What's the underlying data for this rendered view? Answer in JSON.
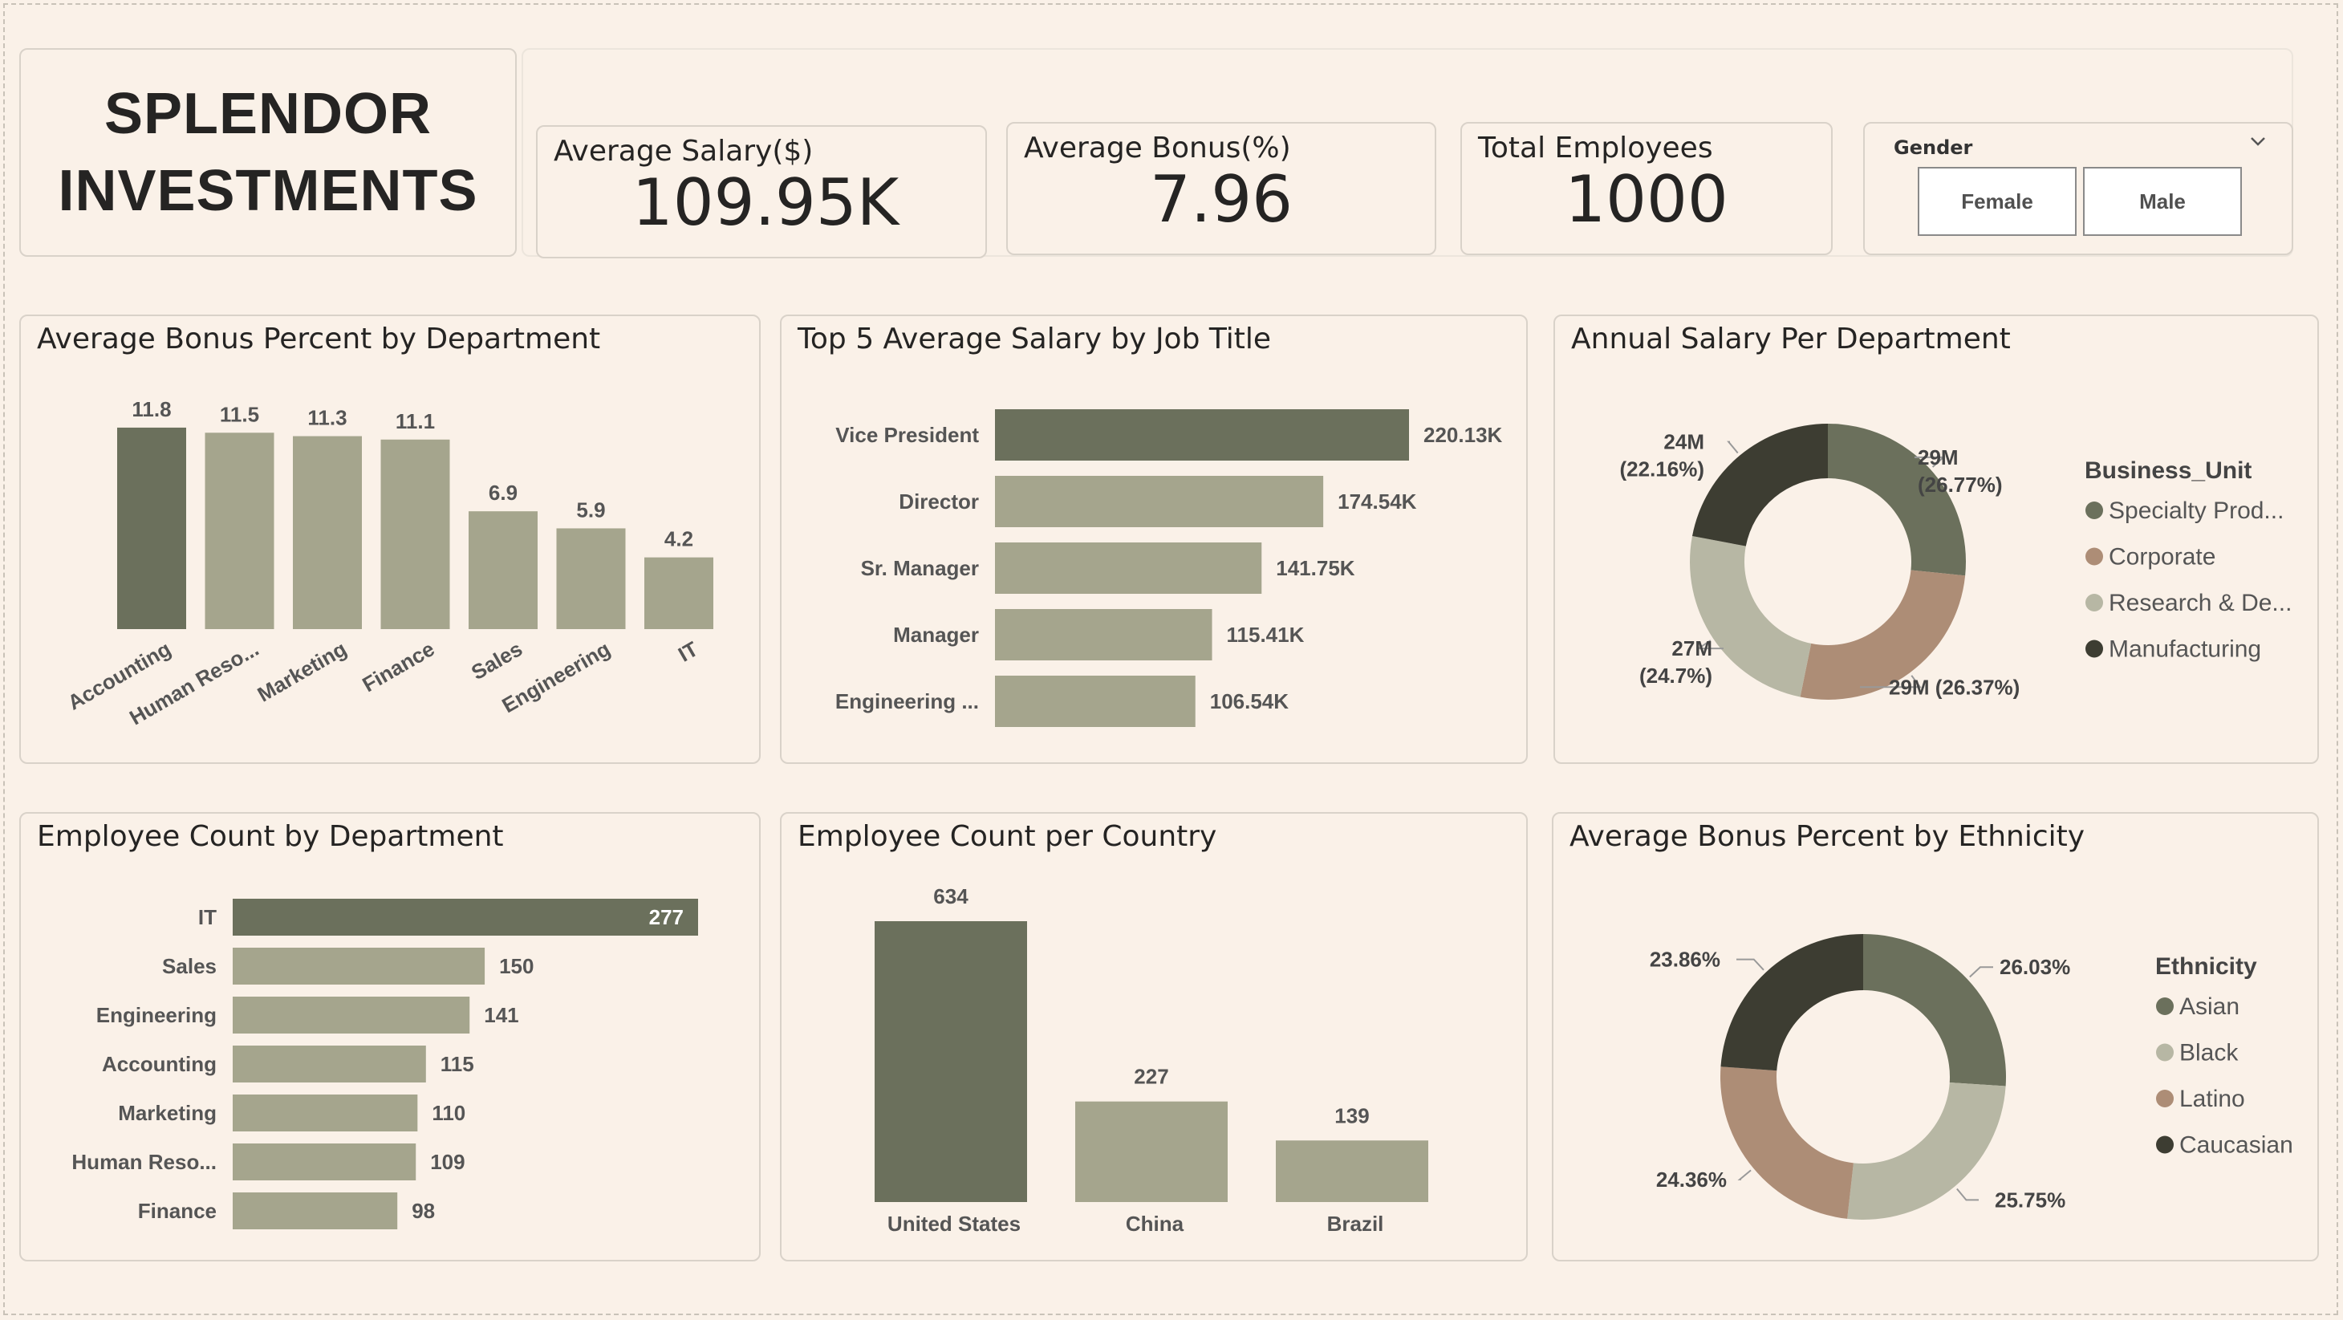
{
  "brand": {
    "line1": "SPLENDOR",
    "line2": "INVESTMENTS"
  },
  "kpis": [
    {
      "label": "Average Salary($)",
      "value": "109.95K"
    },
    {
      "label": "Average Bonus(%)",
      "value": "7.96"
    },
    {
      "label": "Total Employees",
      "value": "1000"
    }
  ],
  "slicer": {
    "title": "Gender",
    "options": [
      "Female",
      "Male"
    ]
  },
  "colors": {
    "highlight": "#6b705c",
    "base": "#a5a58d",
    "tan": "#ad8d76",
    "light": "#b7b7a4",
    "dark": "#3d3d32"
  },
  "chart_data": [
    {
      "id": "bonus_dept",
      "type": "bar",
      "title": "Average Bonus Percent by Department",
      "categories": [
        "Accounting",
        "Human Reso...",
        "Marketing",
        "Finance",
        "Sales",
        "Engineering",
        "IT"
      ],
      "values": [
        11.8,
        11.5,
        11.3,
        11.1,
        6.9,
        5.9,
        4.2
      ],
      "data_labels": [
        "11.8",
        "11.5",
        "11.3",
        "11.1",
        "6.9",
        "5.9",
        "4.2"
      ],
      "ylim": [
        0,
        12.5
      ]
    },
    {
      "id": "salary_title",
      "type": "bar",
      "orientation": "horizontal",
      "title": "Top 5 Average Salary by Job Title",
      "categories": [
        "Vice President",
        "Director",
        "Sr. Manager",
        "Manager",
        "Engineering ..."
      ],
      "values": [
        220.13,
        174.54,
        141.75,
        115.41,
        106.54
      ],
      "data_labels": [
        "220.13K",
        "174.54K",
        "141.75K",
        "115.41K",
        "106.54K"
      ],
      "xlim": [
        0,
        220.13
      ]
    },
    {
      "id": "salary_bu",
      "type": "pie",
      "style": "donut",
      "title": "Annual Salary Per Department",
      "legend_title": "Business_Unit",
      "legend_position": "right",
      "categories": [
        "Specialty Prod...",
        "Corporate",
        "Research & De...",
        "Manufacturing"
      ],
      "values": [
        29,
        29,
        27,
        24
      ],
      "percent": [
        26.77,
        26.37,
        24.7,
        22.16
      ],
      "data_labels": [
        [
          "29M",
          "(26.77%)"
        ],
        [
          "29M (26.37%)"
        ],
        [
          "27M",
          "(24.7%)"
        ],
        [
          "24M",
          "(22.16%)"
        ]
      ]
    },
    {
      "id": "count_dept",
      "type": "bar",
      "orientation": "horizontal",
      "title": "Employee Count by Department",
      "categories": [
        "IT",
        "Sales",
        "Engineering",
        "Accounting",
        "Marketing",
        "Human Reso...",
        "Finance"
      ],
      "values": [
        277,
        150,
        141,
        115,
        110,
        109,
        98
      ],
      "data_labels": [
        "277",
        "150",
        "141",
        "115",
        "110",
        "109",
        "98"
      ],
      "xlim": [
        0,
        277
      ]
    },
    {
      "id": "count_country",
      "type": "bar",
      "title": "Employee Count per Country",
      "categories": [
        "United States",
        "China",
        "Brazil"
      ],
      "values": [
        634,
        227,
        139
      ],
      "data_labels": [
        "634",
        "227",
        "139"
      ],
      "ylim": [
        0,
        634
      ]
    },
    {
      "id": "bonus_eth",
      "type": "pie",
      "style": "donut",
      "title": "Average Bonus Percent by Ethnicity",
      "legend_title": "Ethnicity",
      "legend_position": "right",
      "categories": [
        "Asian",
        "Black",
        "Latino",
        "Caucasian"
      ],
      "values": [
        26.03,
        25.75,
        24.36,
        23.86
      ],
      "data_labels": [
        [
          "26.03%"
        ],
        [
          "25.75%"
        ],
        [
          "24.36%"
        ],
        [
          "23.86%"
        ]
      ]
    }
  ]
}
